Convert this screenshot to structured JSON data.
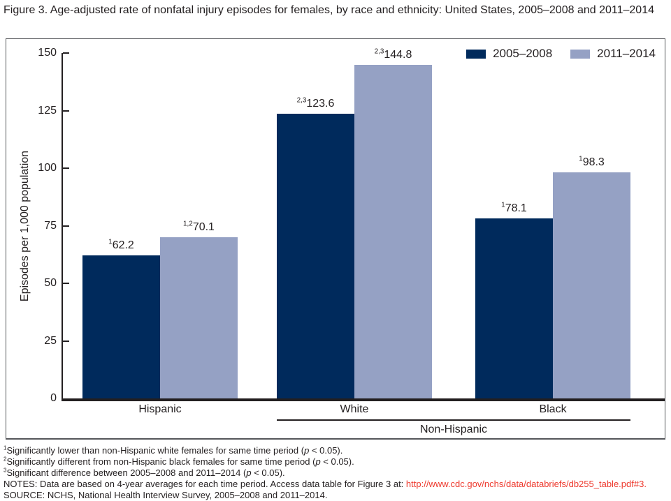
{
  "title": "Figure 3. Age-adjusted rate of nonfatal injury episodes for females, by race and ethnicity: United States, 2005–2008 and 2011–2014",
  "chart_data": {
    "type": "bar",
    "categories": [
      "Hispanic",
      "White",
      "Black"
    ],
    "series": [
      {
        "name": "2005–2008",
        "color": "#002a5c",
        "values": [
          62.2,
          123.6,
          78.1
        ],
        "label_superscripts": [
          "1",
          "2,3",
          "1"
        ]
      },
      {
        "name": "2011–2014",
        "color": "#95a1c4",
        "values": [
          70.1,
          144.8,
          98.3
        ],
        "label_superscripts": [
          "1,2",
          "2,3",
          "1"
        ]
      }
    ],
    "ylabel": "Episodes per 1,000 population",
    "ylim": [
      0,
      150
    ],
    "yticks": [
      "0",
      "25",
      "50",
      "75",
      "100",
      "125",
      "150"
    ],
    "grid": false,
    "legend_position": "top-right",
    "group_underline": {
      "label": "Non-Hispanic",
      "from_category": "White",
      "to_category": "Black"
    }
  },
  "footnotes": [
    {
      "sup": "1",
      "segments": [
        {
          "text": "Significantly lower than non-Hispanic white females for same time period ("
        },
        {
          "text": "p",
          "style": "italic"
        },
        {
          "text": " < 0.05)."
        }
      ]
    },
    {
      "sup": "2",
      "segments": [
        {
          "text": "Significantly different from non-Hispanic black females for same time period ("
        },
        {
          "text": "p",
          "style": "italic"
        },
        {
          "text": " < 0.05)."
        }
      ]
    },
    {
      "sup": "3",
      "segments": [
        {
          "text": "Significant difference between 2005–2008 and 2011–2014 ("
        },
        {
          "text": "p",
          "style": "italic"
        },
        {
          "text": " < 0.05)."
        }
      ]
    },
    {
      "segments": [
        {
          "text": "NOTES: Data are based on 4-year averages for each time period. Access data table for Figure 3 at: "
        },
        {
          "text": "http://www.cdc.gov/nchs/data/databriefs/db255_table.pdf#3.",
          "style": "link"
        }
      ]
    },
    {
      "segments": [
        {
          "text": "SOURCE: NCHS, National Health Interview Survey, 2005–2008 and 2011–2014."
        }
      ]
    }
  ],
  "colors": {
    "series_2005_2008": "#002a5c",
    "series_2011_2014": "#95a1c4",
    "axis": "#231f20",
    "link_red": "#ee3a2e",
    "text": "#231f20"
  }
}
